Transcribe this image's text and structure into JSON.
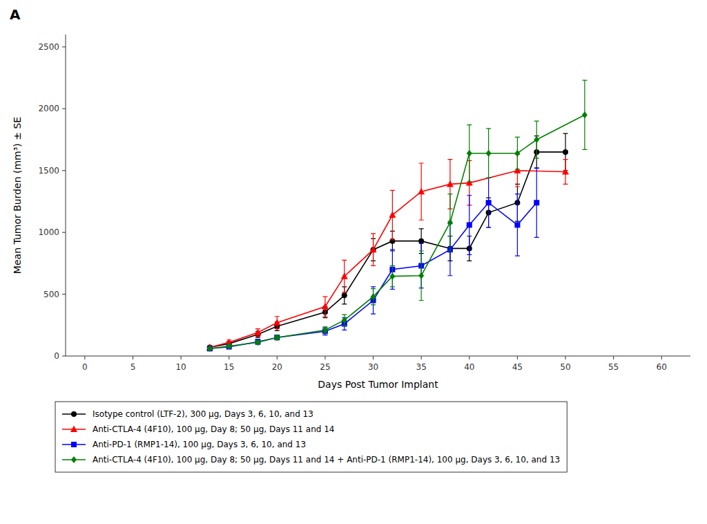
{
  "chart_data": {
    "type": "line",
    "title": "A",
    "xlabel": "Days Post Tumor Implant",
    "ylabel": "Mean Tumor Burden (mm³) ± SE",
    "xlim": [
      -2,
      63
    ],
    "ylim": [
      0,
      2600
    ],
    "xticks": [
      0,
      5,
      10,
      15,
      20,
      25,
      30,
      35,
      40,
      45,
      50,
      55,
      60
    ],
    "yticks": [
      0,
      500,
      1000,
      1500,
      2000,
      2500
    ],
    "grid": false,
    "legend": "bottom",
    "series": [
      {
        "name": "Isotype control (LTF-2), 300 μg, Days 3, 6, 10, and 13",
        "color": "#000000",
        "marker": "circle",
        "x": [
          13,
          15,
          18,
          20,
          25,
          27,
          30,
          32,
          35,
          38,
          40,
          42,
          45,
          47,
          50
        ],
        "values": [
          70,
          100,
          175,
          240,
          355,
          490,
          860,
          930,
          930,
          870,
          870,
          1160,
          1240,
          1650,
          1650
        ],
        "yerr": [
          10,
          15,
          25,
          35,
          45,
          70,
          90,
          80,
          100,
          100,
          100,
          120,
          150,
          130,
          150
        ]
      },
      {
        "name": "Anti-CTLA-4 (4F10), 100 μg, Day 8; 50 μg, Days 11 and 14",
        "color": "#ff0000",
        "marker": "triangle",
        "x": [
          13,
          15,
          18,
          20,
          25,
          27,
          30,
          32,
          35,
          38,
          40,
          45,
          50
        ],
        "values": [
          70,
          110,
          190,
          270,
          400,
          645,
          860,
          1140,
          1330,
          1390,
          1400,
          1500,
          1490
        ],
        "yerr": [
          10,
          20,
          30,
          50,
          80,
          130,
          130,
          200,
          230,
          200,
          180,
          130,
          100
        ]
      },
      {
        "name": "Anti-PD-1 (RMP1-14), 100 μg, Days 3, 6, 10, and 13",
        "color": "#0000ff",
        "marker": "square",
        "x": [
          13,
          15,
          18,
          20,
          25,
          27,
          30,
          32,
          35,
          38,
          40,
          42,
          45,
          47
        ],
        "values": [
          60,
          75,
          115,
          150,
          200,
          260,
          450,
          700,
          730,
          860,
          1060,
          1240,
          1060,
          1240
        ],
        "yerr": [
          10,
          10,
          20,
          20,
          30,
          50,
          110,
          160,
          180,
          210,
          240,
          200,
          250,
          280
        ]
      },
      {
        "name": "Anti-CTLA-4 (4F10), 100 μg, Day 8; 50 μg, Days 11 and 14 + Anti-PD-1 (RMP1-14), 100 μg, Days 3, 6, 10, and 13",
        "color": "#008000",
        "marker": "diamond",
        "x": [
          13,
          15,
          18,
          20,
          25,
          27,
          30,
          32,
          35,
          38,
          40,
          42,
          45,
          47,
          52
        ],
        "values": [
          60,
          80,
          110,
          150,
          210,
          290,
          480,
          645,
          650,
          1080,
          1640,
          1640,
          1640,
          1750,
          1950
        ],
        "yerr": [
          8,
          12,
          15,
          18,
          25,
          45,
          65,
          85,
          200,
          230,
          230,
          200,
          130,
          150,
          280
        ]
      }
    ]
  }
}
